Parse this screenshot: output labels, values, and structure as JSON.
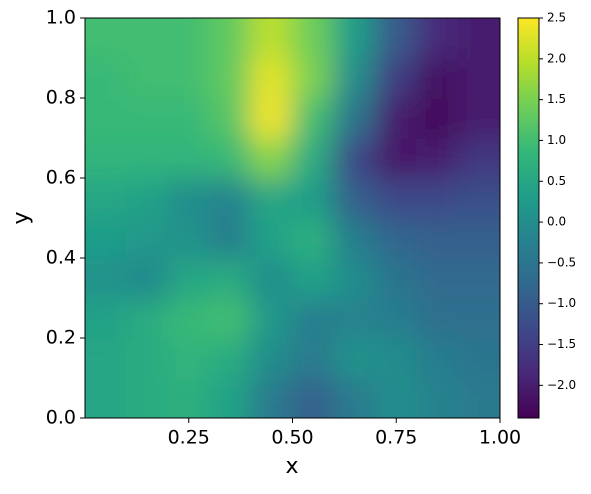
{
  "chart_data": {
    "type": "contour",
    "colormap": "viridis",
    "xlabel": "x",
    "ylabel": "y",
    "xlim": [
      0,
      1
    ],
    "ylim": [
      0,
      1
    ],
    "clim": [
      -2.4,
      2.5
    ],
    "xticks": [
      {
        "value": 0.25,
        "label": "0.25"
      },
      {
        "value": 0.5,
        "label": "0.50"
      },
      {
        "value": 0.75,
        "label": "0.75"
      },
      {
        "value": 1,
        "label": "1.00"
      }
    ],
    "yticks": [
      {
        "value": 0,
        "label": "0.0"
      },
      0.2,
      0.4,
      0.6,
      0.8,
      {
        "value": 1,
        "label": "1.0"
      }
    ],
    "cticks": [
      {
        "value": -2,
        "label": "−2.0"
      },
      {
        "value": -1.5,
        "label": "−1.5"
      },
      {
        "value": -1,
        "label": "−1.0"
      },
      {
        "value": -0.5,
        "label": "−0.5"
      },
      {
        "value": 0,
        "label": "0.0"
      },
      0.5,
      {
        "value": 1,
        "label": "1.0"
      },
      1.5,
      {
        "value": 2,
        "label": "2.0"
      },
      2.5
    ],
    "x": [
      0.05,
      0.15,
      0.25,
      0.35,
      0.45,
      0.55,
      0.65,
      0.75,
      0.85,
      0.95
    ],
    "y": [
      0.05,
      0.15,
      0.25,
      0.35,
      0.45,
      0.55,
      0.65,
      0.75,
      0.85,
      0.95
    ],
    "z": [
      [
        0.5,
        0.6,
        0.7,
        0.4,
        -0.4,
        -0.9,
        -0.4,
        0.0,
        -0.2,
        -0.4
      ],
      [
        0.5,
        0.6,
        0.8,
        0.6,
        0.0,
        -0.4,
        0.1,
        0.0,
        -0.3,
        -0.5
      ],
      [
        0.4,
        0.6,
        0.9,
        1.0,
        0.2,
        -0.3,
        -0.2,
        -0.3,
        -0.6,
        -0.6
      ],
      [
        0.1,
        -0.1,
        0.5,
        0.6,
        0.0,
        0.4,
        0.0,
        -0.5,
        -0.7,
        -0.7
      ],
      [
        0.3,
        0.2,
        0.1,
        -0.3,
        0.4,
        0.7,
        -0.3,
        -0.8,
        -0.9,
        -0.9
      ],
      [
        0.5,
        0.4,
        0.0,
        -0.2,
        0.5,
        0.3,
        -0.9,
        -1.3,
        -1.3,
        -1.2
      ],
      [
        0.8,
        0.8,
        0.8,
        0.9,
        1.6,
        0.6,
        -1.3,
        -2.1,
        -2.0,
        -1.6
      ],
      [
        0.9,
        0.9,
        0.9,
        1.2,
        2.4,
        1.0,
        -0.5,
        -2.0,
        -2.3,
        -2.0
      ],
      [
        0.9,
        1.0,
        1.0,
        1.3,
        2.3,
        1.5,
        0.0,
        -1.5,
        -2.2,
        -2.0
      ],
      [
        1.0,
        1.0,
        1.0,
        1.3,
        2.0,
        1.4,
        0.3,
        -1.0,
        -1.8,
        -2.0
      ]
    ]
  }
}
